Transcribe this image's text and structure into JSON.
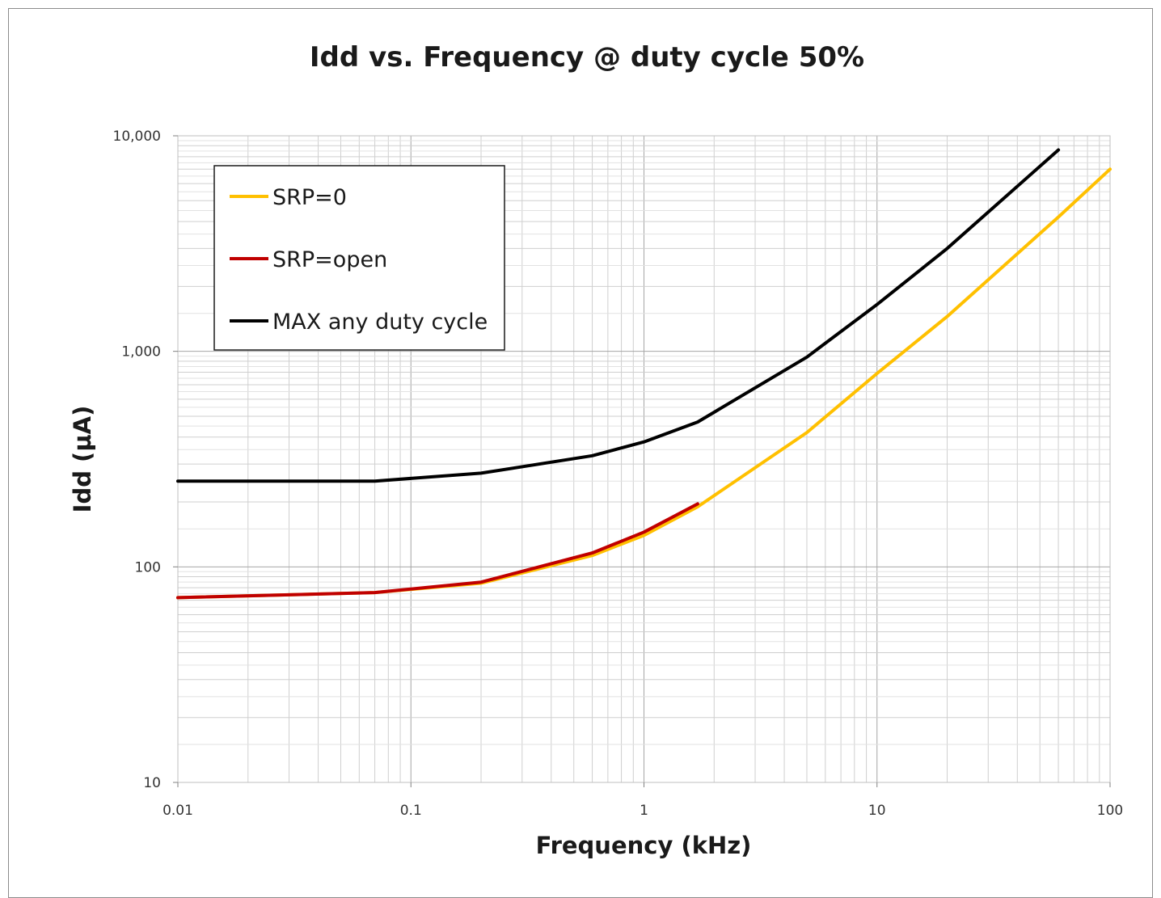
{
  "chart_data": {
    "type": "line",
    "title": "Idd vs. Frequency @ duty cycle 50%",
    "xlabel": "Frequency (kHz)",
    "ylabel": "Idd (µA)",
    "x_scale": "log",
    "y_scale": "log",
    "xlim": [
      0.01,
      100
    ],
    "ylim": [
      10,
      10000
    ],
    "x_ticks": [
      "0.01",
      "0.1",
      "1",
      "10",
      "100"
    ],
    "y_ticks": [
      "10",
      "100",
      "1,000",
      "10,000"
    ],
    "grid": true,
    "legend_position": "top-left",
    "series": [
      {
        "name": "SRP=0",
        "color": "#FFC000",
        "x": [
          0.01,
          0.07,
          0.2,
          0.6,
          1,
          1.7,
          5,
          10,
          20,
          60,
          100
        ],
        "y": [
          72,
          76,
          84,
          113,
          140,
          190,
          420,
          790,
          1450,
          4200,
          7000
        ]
      },
      {
        "name": "SRP=open",
        "color": "#C00000",
        "x": [
          0.01,
          0.07,
          0.2,
          0.6,
          1,
          1.7
        ],
        "y": [
          72,
          76,
          85,
          116,
          145,
          196
        ]
      },
      {
        "name": "MAX any duty cycle",
        "color": "#000000",
        "x": [
          0.01,
          0.07,
          0.2,
          0.6,
          1,
          1.7,
          5,
          10,
          20,
          60
        ],
        "y": [
          250,
          250,
          272,
          328,
          380,
          470,
          940,
          1650,
          3000,
          8600
        ]
      }
    ]
  }
}
